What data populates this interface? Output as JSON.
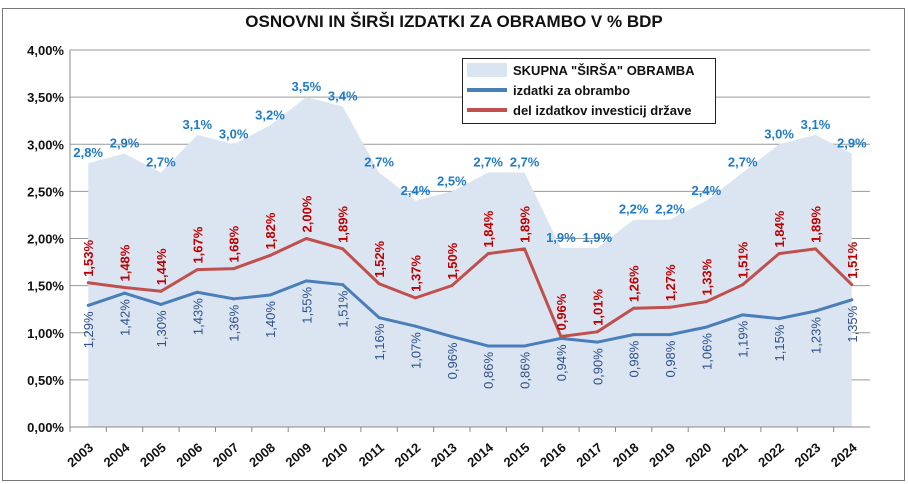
{
  "chart_data": {
    "type": "line",
    "title": "OSNOVNI IN ŠIRŠI IZDATKI ZA OBRAMBO V % BDP",
    "xlabel": "",
    "ylabel": "",
    "ylim": [
      0,
      4
    ],
    "y_ticks": [
      "0,00%",
      "0,50%",
      "1,00%",
      "1,50%",
      "2,00%",
      "2,50%",
      "3,00%",
      "3,50%",
      "4,00%"
    ],
    "grid": true,
    "legend_position": "top-right",
    "categories": [
      "2003",
      "2004",
      "2005",
      "2006",
      "2007",
      "2008",
      "2009",
      "2010",
      "2011",
      "2012",
      "2013",
      "2014",
      "2015",
      "2016",
      "2017",
      "2018",
      "2019",
      "2020",
      "2021",
      "2022",
      "2023",
      "2024"
    ],
    "series": [
      {
        "name": "SKUPNA \"ŠIRŠA\" OBRAMBA",
        "kind": "area",
        "color": "#dbe5f1",
        "label_color": "#1f7bc8",
        "values": [
          2.8,
          2.9,
          2.7,
          3.1,
          3.0,
          3.2,
          3.5,
          3.4,
          2.7,
          2.4,
          2.5,
          2.7,
          2.7,
          1.9,
          1.9,
          2.2,
          2.2,
          2.4,
          2.7,
          3.0,
          3.1,
          2.9
        ],
        "labels": [
          "2,8%",
          "2,9%",
          "2,7%",
          "3,1%",
          "3,0%",
          "3,2%",
          "3,5%",
          "3,4%",
          "2,7%",
          "2,4%",
          "2,5%",
          "2,7%",
          "2,7%",
          "1,9%",
          "1,9%",
          "2,2%",
          "2,2%",
          "2,4%",
          "2,7%",
          "3,0%",
          "3,1%",
          "2,9%"
        ]
      },
      {
        "name": "izdatki za obrambo",
        "kind": "line",
        "color": "#4a7ebb",
        "label_color": "#2f4f8a",
        "values": [
          1.29,
          1.42,
          1.3,
          1.43,
          1.36,
          1.4,
          1.55,
          1.51,
          1.16,
          1.07,
          0.96,
          0.86,
          0.86,
          0.94,
          0.9,
          0.98,
          0.98,
          1.06,
          1.19,
          1.15,
          1.23,
          1.35
        ],
        "labels": [
          "1,29%",
          "1,42%",
          "1,30%",
          "1,43%",
          "1,36%",
          "1,40%",
          "1,55%",
          "1,51%",
          "1,16%",
          "1,07%",
          "0,96%",
          "0,86%",
          "0,86%",
          "0,94%",
          "0,90%",
          "0,98%",
          "0,98%",
          "1,06%",
          "1,19%",
          "1,15%",
          "1,23%",
          "1,35%"
        ]
      },
      {
        "name": "del  izdatkov investicij države",
        "kind": "line",
        "color": "#c0504d",
        "label_color": "#c00000",
        "values": [
          1.53,
          1.48,
          1.44,
          1.67,
          1.68,
          1.82,
          2.0,
          1.89,
          1.52,
          1.37,
          1.5,
          1.84,
          1.89,
          0.96,
          1.01,
          1.26,
          1.27,
          1.33,
          1.51,
          1.84,
          1.89,
          1.51
        ],
        "labels": [
          "1,53%",
          "1,48%",
          "1,44%",
          "1,67%",
          "1,68%",
          "1,82%",
          "2,00%",
          "1,89%",
          "1,52%",
          "1,37%",
          "1,50%",
          "1,84%",
          "1,89%",
          "0,96%",
          "1,01%",
          "1,26%",
          "1,27%",
          "1,33%",
          "1,51%",
          "1,84%",
          "1,89%",
          "1,51%"
        ]
      }
    ]
  }
}
